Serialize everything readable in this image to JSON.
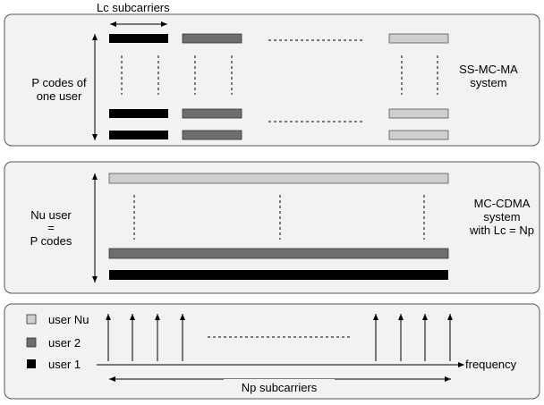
{
  "colors": {
    "black": "#000000",
    "dark_gray": "#6e6e6e",
    "light_gray": "#cfcfcf",
    "panel_bg": "#f2f2f2",
    "panel_border": "#555555"
  },
  "panel1": {
    "lc_label": "Lc subcarriers",
    "left_label_line1": "P codes of",
    "left_label_line2": "one user",
    "right_label_line1": "SS-MC-MA",
    "right_label_line2": "system"
  },
  "panel2": {
    "left_label_line1": "Nu user",
    "left_label_line2": "=",
    "left_label_line3": "P codes",
    "right_label_line1": "MC-CDMA",
    "right_label_line2": "system",
    "right_label_line3": "with Lc = Np"
  },
  "panel3": {
    "legend": [
      {
        "label": "user Nu",
        "color": "#cfcfcf"
      },
      {
        "label": "user 2",
        "color": "#6e6e6e"
      },
      {
        "label": "user 1",
        "color": "#000000"
      }
    ],
    "axis_label": "frequency",
    "np_label": "Np subcarriers"
  }
}
